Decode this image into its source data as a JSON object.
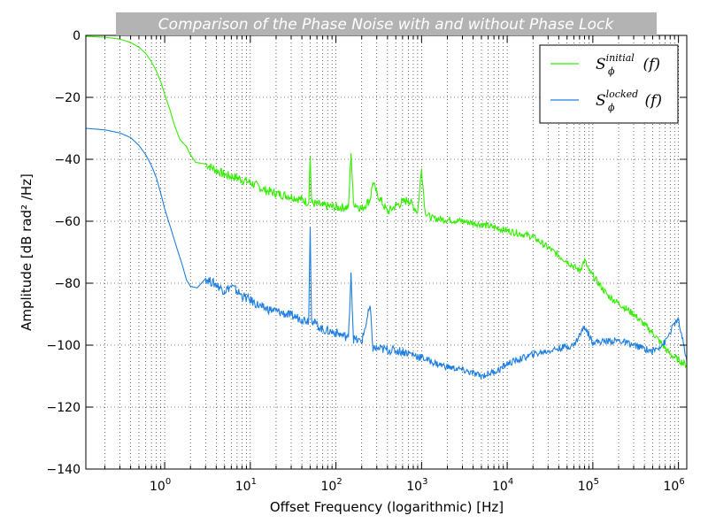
{
  "chart_data": {
    "type": "line",
    "title": "Comparison of the Phase Noise with and without Phase Lock",
    "xlabel": "Offset Frequency (logarithmic) [Hz]",
    "ylabel": "Amplitude [dB rad² /Hz]",
    "xscale": "log",
    "xlim": [
      0.12,
      1250000
    ],
    "ylim": [
      -140,
      0
    ],
    "xticks": [
      {
        "base": "10",
        "exp": "0"
      },
      {
        "base": "10",
        "exp": "1"
      },
      {
        "base": "10",
        "exp": "2"
      },
      {
        "base": "10",
        "exp": "3"
      },
      {
        "base": "10",
        "exp": "4"
      },
      {
        "base": "10",
        "exp": "5"
      },
      {
        "base": "10",
        "exp": "6"
      }
    ],
    "yticks": [
      "0",
      "−20",
      "−40",
      "−60",
      "−80",
      "−100",
      "−120",
      "−140"
    ],
    "ytick_values": [
      0,
      -20,
      -40,
      -60,
      -80,
      -100,
      -120,
      -140
    ],
    "grid": "dotted, major and minor",
    "legend_position": "top-right",
    "series": [
      {
        "name_base": "S",
        "name_sub": "ϕ",
        "name_sup": "initial",
        "name_arg": "(f)",
        "color": "#33ee00",
        "points": [
          [
            0.12,
            -0.3
          ],
          [
            0.2,
            -0.6
          ],
          [
            0.3,
            -1.2
          ],
          [
            0.4,
            -2.3
          ],
          [
            0.5,
            -3.8
          ],
          [
            0.6,
            -5.8
          ],
          [
            0.7,
            -8.5
          ],
          [
            0.8,
            -11.5
          ],
          [
            0.9,
            -15
          ],
          [
            1.0,
            -19
          ],
          [
            1.15,
            -24
          ],
          [
            1.3,
            -29
          ],
          [
            1.5,
            -33.5
          ],
          [
            1.8,
            -36
          ],
          [
            2.0,
            -38.5
          ],
          [
            2.3,
            -41
          ],
          [
            3.0,
            -41.5
          ],
          [
            4.0,
            -43.5
          ],
          [
            5.0,
            -45
          ],
          [
            7.0,
            -46
          ],
          [
            10,
            -47.5
          ],
          [
            15,
            -50
          ],
          [
            20,
            -51
          ],
          [
            30,
            -52
          ],
          [
            40,
            -53
          ],
          [
            48,
            -54
          ],
          [
            50,
            -39
          ],
          [
            52,
            -54
          ],
          [
            70,
            -55
          ],
          [
            100,
            -55.5
          ],
          [
            140,
            -55.5
          ],
          [
            150,
            -38
          ],
          [
            160,
            -54
          ],
          [
            200,
            -56
          ],
          [
            250,
            -53
          ],
          [
            270,
            -47.5
          ],
          [
            300,
            -51
          ],
          [
            400,
            -57
          ],
          [
            500,
            -55
          ],
          [
            700,
            -53
          ],
          [
            900,
            -57
          ],
          [
            1000,
            -43
          ],
          [
            1100,
            -57
          ],
          [
            1300,
            -59
          ],
          [
            2000,
            -59.5
          ],
          [
            3000,
            -60
          ],
          [
            5000,
            -61
          ],
          [
            10000,
            -63
          ],
          [
            20000,
            -65
          ],
          [
            50000,
            -73
          ],
          [
            70000,
            -76
          ],
          [
            80000,
            -72.5
          ],
          [
            90000,
            -76
          ],
          [
            150000,
            -84
          ],
          [
            300000,
            -90
          ],
          [
            500000,
            -96
          ],
          [
            800000,
            -103
          ],
          [
            1250000,
            -106.5
          ]
        ]
      },
      {
        "name_base": "S",
        "name_sub": "ϕ",
        "name_sup": "locked",
        "name_arg": "(f)",
        "color": "#1e7fe0",
        "points": [
          [
            0.12,
            -30
          ],
          [
            0.2,
            -30.5
          ],
          [
            0.3,
            -31.5
          ],
          [
            0.4,
            -33
          ],
          [
            0.5,
            -35.5
          ],
          [
            0.6,
            -38.5
          ],
          [
            0.7,
            -42
          ],
          [
            0.8,
            -46
          ],
          [
            0.9,
            -51
          ],
          [
            1.0,
            -56
          ],
          [
            1.2,
            -63
          ],
          [
            1.4,
            -69
          ],
          [
            1.6,
            -74
          ],
          [
            1.8,
            -79
          ],
          [
            2.0,
            -81
          ],
          [
            2.4,
            -81.5
          ],
          [
            3.0,
            -78.5
          ],
          [
            4.0,
            -80.5
          ],
          [
            5.0,
            -82.5
          ],
          [
            6.0,
            -81
          ],
          [
            8.0,
            -84
          ],
          [
            10,
            -85.5
          ],
          [
            14,
            -88
          ],
          [
            20,
            -89
          ],
          [
            30,
            -90.5
          ],
          [
            40,
            -91.5
          ],
          [
            48,
            -92
          ],
          [
            50,
            -62
          ],
          [
            52,
            -92
          ],
          [
            70,
            -95
          ],
          [
            100,
            -96
          ],
          [
            140,
            -97.5
          ],
          [
            150,
            -76.5
          ],
          [
            160,
            -98
          ],
          [
            200,
            -99
          ],
          [
            250,
            -87.5
          ],
          [
            270,
            -101
          ],
          [
            400,
            -101.5
          ],
          [
            600,
            -102
          ],
          [
            800,
            -103
          ],
          [
            1000,
            -104
          ],
          [
            1500,
            -106
          ],
          [
            2000,
            -107
          ],
          [
            3000,
            -108
          ],
          [
            5000,
            -110
          ],
          [
            8000,
            -108
          ],
          [
            10000,
            -106
          ],
          [
            20000,
            -103
          ],
          [
            40000,
            -101
          ],
          [
            60000,
            -100
          ],
          [
            80000,
            -94
          ],
          [
            100000,
            -99
          ],
          [
            200000,
            -98.5
          ],
          [
            300000,
            -100
          ],
          [
            500000,
            -102
          ],
          [
            700000,
            -99
          ],
          [
            900000,
            -93
          ],
          [
            1000000,
            -92
          ],
          [
            1250000,
            -105
          ]
        ]
      }
    ]
  }
}
